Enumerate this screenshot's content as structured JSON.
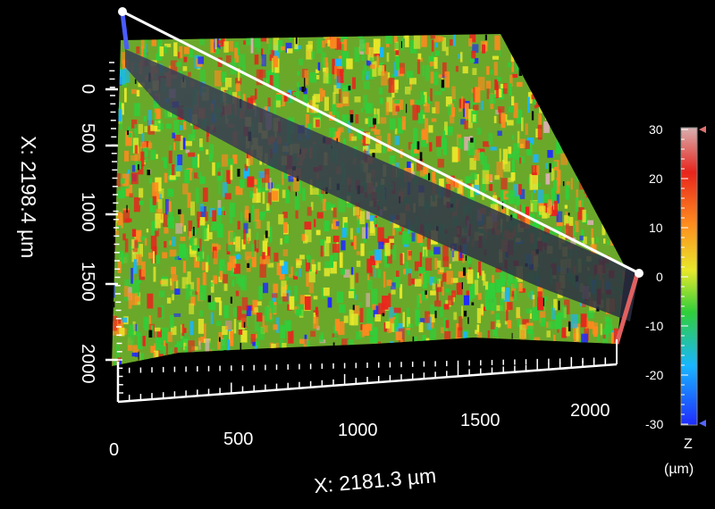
{
  "chart_data": {
    "type": "surface-3d",
    "title": "",
    "x_axis": {
      "label": "X: 2181.3 µm",
      "ticks": [
        "0",
        "500",
        "1000",
        "1500",
        "2000"
      ],
      "range": [
        0,
        2181.3
      ]
    },
    "y_axis": {
      "label": "X: 2198.4 µm",
      "ticks": [
        "0",
        "500",
        "1000",
        "1500",
        "2000"
      ],
      "range": [
        0,
        2198.4
      ]
    },
    "z_colorbar": {
      "label": "Z",
      "unit": "(µm)",
      "ticks": [
        "30",
        "20",
        "10",
        "0",
        "-10",
        "-20",
        "-30"
      ],
      "range": [
        -30,
        30
      ],
      "colors": [
        "#1f2bff",
        "#19b6ff",
        "#2fcf3a",
        "#e8e82a",
        "#ff8a1e",
        "#e8241c",
        "#d8b0b0"
      ]
    },
    "profile_line": {
      "color": "#ffffff"
    }
  }
}
